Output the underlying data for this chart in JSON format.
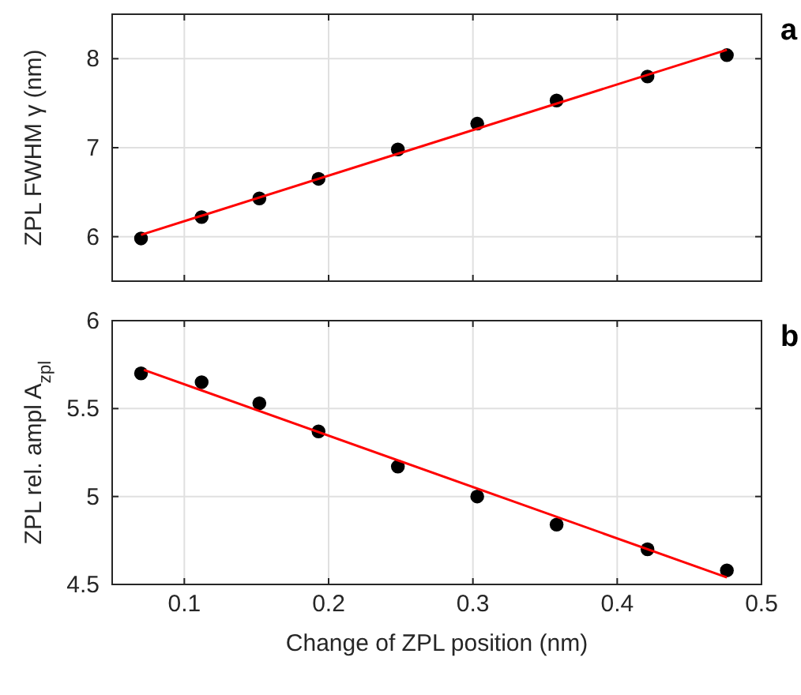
{
  "chart_data": [
    {
      "type": "scatter",
      "ylabel": "ZPL FWHM γ (nm)",
      "annotations": [
        "a"
      ],
      "xlim": [
        0.05,
        0.5
      ],
      "xticks": [
        0.1,
        0.2,
        0.3,
        0.4,
        0.5
      ],
      "ylim": [
        5.5,
        8.5
      ],
      "yticks": [
        6,
        7,
        8
      ],
      "grid": true,
      "tick_labels": "y",
      "series": [
        {
          "color": "#000000",
          "marker": "circle",
          "x": [
            0.07,
            0.112,
            0.152,
            0.193,
            0.248,
            0.303,
            0.358,
            0.421,
            0.476
          ],
          "values": [
            5.98,
            6.22,
            6.43,
            6.65,
            6.98,
            7.27,
            7.53,
            7.8,
            8.04
          ]
        },
        {
          "type": "line",
          "color": "#ff0000",
          "marker": "none",
          "x": [
            0.07,
            0.476
          ],
          "values": [
            6.02,
            8.1
          ]
        }
      ]
    },
    {
      "type": "scatter",
      "ylabel": "ZPL rel. ampl A$_{zpl}$",
      "xlabel": "Change of ZPL position (nm)",
      "annotations": [
        "b"
      ],
      "xlim": [
        0.05,
        0.5
      ],
      "xticks": [
        0.1,
        0.2,
        0.3,
        0.4,
        0.5
      ],
      "ylim": [
        4.5,
        6
      ],
      "yticks": [
        4.5,
        5,
        5.5,
        6
      ],
      "grid": true,
      "series": [
        {
          "color": "#000000",
          "marker": "circle",
          "x": [
            0.07,
            0.112,
            0.152,
            0.193,
            0.248,
            0.303,
            0.358,
            0.421,
            0.476
          ],
          "values": [
            5.7,
            5.65,
            5.53,
            5.37,
            5.17,
            5.0,
            4.84,
            4.7,
            4.58
          ]
        },
        {
          "type": "line",
          "color": "#ff0000",
          "marker": "none",
          "x": [
            0.072,
            0.476
          ],
          "values": [
            5.72,
            4.54
          ]
        }
      ]
    }
  ]
}
